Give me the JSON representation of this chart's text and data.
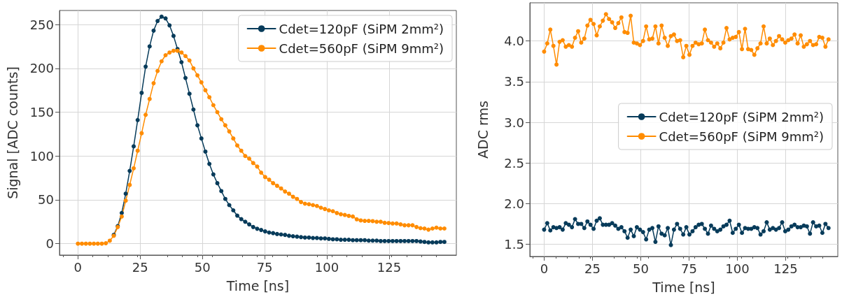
{
  "chart_data": [
    {
      "type": "line",
      "xlabel": "Time [ns]",
      "ylabel": "Signal [ADC counts]",
      "xlim": [
        -7.4,
        152
      ],
      "xticks": [
        0,
        25,
        50,
        75,
        100,
        125
      ],
      "ylim": [
        -13,
        266
      ],
      "yticks": [
        0,
        50,
        100,
        150,
        200,
        250
      ],
      "grid": true,
      "legend": "top right",
      "marker": "circle",
      "line_style": "solid",
      "x": [
        0,
        1.6,
        3.2,
        4.8,
        6.4,
        8,
        9.6,
        11.2,
        12.8,
        14.4,
        16,
        17.6,
        19.2,
        20.8,
        22.4,
        24,
        25.6,
        27.2,
        28.8,
        30.4,
        32,
        33.6,
        35.2,
        36.8,
        38.4,
        40,
        41.6,
        43.2,
        44.8,
        46.4,
        48,
        49.6,
        51.2,
        52.8,
        54.4,
        56,
        57.6,
        59.2,
        60.8,
        62.4,
        64,
        65.6,
        67.2,
        68.8,
        70.4,
        72,
        73.6,
        75.2,
        76.8,
        78.4,
        80,
        81.6,
        83.2,
        84.8,
        86.4,
        88,
        89.6,
        91.2,
        92.8,
        94.4,
        96,
        97.6,
        99.2,
        100.8,
        102.4,
        104,
        105.6,
        107.2,
        108.8,
        110.4,
        112,
        113.6,
        115.2,
        116.8,
        118.4,
        120,
        121.6,
        123.2,
        124.8,
        126.4,
        128,
        129.6,
        131.2,
        132.8,
        134.4,
        136,
        137.6,
        139.2,
        140.8,
        142.4,
        144,
        145.6,
        147.2
      ],
      "series": [
        {
          "name": "Cdet=120pF (SiPM 2mm²)",
          "color": "#073b5a",
          "values": [
            null,
            null,
            null,
            null,
            null,
            null,
            null,
            null,
            null,
            10,
            20,
            35,
            57,
            83,
            111,
            141,
            172,
            202,
            225,
            243,
            254,
            259,
            257,
            249,
            237,
            222,
            207,
            189,
            171,
            153,
            135,
            120,
            105,
            91,
            79,
            69,
            60,
            51,
            44,
            38,
            32,
            28,
            25,
            22,
            19,
            17,
            15.6,
            14,
            12.7,
            12,
            11,
            10.5,
            10,
            9,
            8.5,
            8,
            7.5,
            7,
            7,
            6.5,
            6.5,
            6,
            6,
            5.5,
            5,
            5,
            4.5,
            4.5,
            4.5,
            4,
            4,
            4,
            4,
            3.5,
            3.5,
            3.5,
            3,
            3,
            3,
            3,
            3,
            3,
            3,
            3,
            3,
            3,
            2.5,
            2,
            1.5,
            1.5,
            1.5,
            2,
            2
          ]
        },
        {
          "name": "Cdet=560pF (SiPM 9mm²)",
          "color": "#ff8c00",
          "values": [
            0,
            0,
            0,
            0,
            0,
            0,
            0,
            0.5,
            3.4,
            9,
            19,
            31,
            49,
            67,
            86,
            106,
            126,
            147,
            165,
            183,
            197,
            208,
            215,
            218,
            220,
            220,
            218,
            214,
            209,
            200,
            192,
            184,
            175,
            167,
            158,
            150,
            142,
            135,
            128,
            120,
            112,
            106,
            100,
            97,
            92,
            88,
            81,
            76,
            73,
            69,
            66,
            63,
            59.5,
            57,
            53.5,
            51,
            47.5,
            45.6,
            45,
            44,
            43,
            41,
            39.5,
            38,
            37,
            35,
            33.6,
            32.8,
            31.7,
            31,
            27.8,
            26.5,
            26,
            26,
            25.7,
            25,
            25,
            23.8,
            23.5,
            23,
            23,
            22,
            21,
            21,
            21,
            19,
            17.7,
            17.3,
            16,
            17.3,
            18.3,
            17.3,
            17.3
          ]
        }
      ]
    },
    {
      "type": "line",
      "xlabel": "Time [ns]",
      "ylabel": "ADC rms",
      "xlim": [
        -7.4,
        152
      ],
      "xticks": [
        0,
        25,
        50,
        75,
        100,
        125
      ],
      "ylim": [
        1.35,
        4.47
      ],
      "yticks": [
        1.5,
        {
          "value": 2,
          "label": "2.0"
        },
        2.5,
        {
          "value": 3,
          "label": "3.0"
        },
        3.5,
        {
          "value": 4,
          "label": "4.0"
        }
      ],
      "grid": true,
      "legend": "right",
      "marker": "circle",
      "line_style": "solid",
      "x": [
        0,
        1.6,
        3.2,
        4.8,
        6.4,
        8,
        9.6,
        11.2,
        12.8,
        14.4,
        16,
        17.6,
        19.2,
        20.8,
        22.4,
        24,
        25.6,
        27.2,
        28.8,
        30.4,
        32,
        33.6,
        35.2,
        36.8,
        38.4,
        40,
        41.6,
        43.2,
        44.8,
        46.4,
        48,
        49.6,
        51.2,
        52.8,
        54.4,
        56,
        57.6,
        59.2,
        60.8,
        62.4,
        64,
        65.6,
        67.2,
        68.8,
        70.4,
        72,
        73.6,
        75.2,
        76.8,
        78.4,
        80,
        81.6,
        83.2,
        84.8,
        86.4,
        88,
        89.6,
        91.2,
        92.8,
        94.4,
        96,
        97.6,
        99.2,
        100.8,
        102.4,
        104,
        105.6,
        107.2,
        108.8,
        110.4,
        112,
        113.6,
        115.2,
        116.8,
        118.4,
        120,
        121.6,
        123.2,
        124.8,
        126.4,
        128,
        129.6,
        131.2,
        132.8,
        134.4,
        136,
        137.6,
        139.2,
        140.8,
        142.4,
        144,
        145.6,
        147.2
      ],
      "series": [
        {
          "name": "Cdet=120pF (SiPM 2mm²)",
          "color": "#073b5a",
          "values": [
            1.68,
            1.76,
            1.67,
            1.71,
            1.7,
            1.71,
            1.68,
            1.76,
            1.74,
            1.71,
            1.81,
            1.75,
            1.75,
            1.7,
            1.78,
            1.74,
            1.69,
            1.79,
            1.82,
            1.74,
            1.74,
            1.74,
            1.76,
            1.73,
            1.69,
            1.71,
            1.66,
            1.58,
            1.68,
            1.6,
            1.71,
            1.68,
            1.65,
            1.56,
            1.68,
            1.7,
            1.53,
            1.72,
            1.63,
            1.61,
            1.7,
            1.49,
            1.68,
            1.75,
            1.69,
            1.62,
            1.71,
            1.62,
            1.66,
            1.71,
            1.74,
            1.75,
            1.69,
            1.63,
            1.73,
            1.69,
            1.66,
            1.68,
            1.72,
            1.74,
            1.79,
            1.64,
            1.69,
            1.74,
            1.64,
            1.7,
            1.69,
            1.69,
            1.71,
            1.7,
            1.62,
            1.66,
            1.77,
            1.68,
            1.7,
            1.68,
            1.7,
            1.77,
            1.66,
            1.68,
            1.72,
            1.74,
            1.71,
            1.71,
            1.73,
            1.72,
            1.63,
            1.77,
            1.72,
            1.73,
            1.64,
            1.75,
            1.7
          ]
        },
        {
          "name": "Cdet=560pF (SiPM 9mm²)",
          "color": "#ff8c00",
          "values": [
            3.87,
            3.97,
            4.14,
            3.94,
            3.71,
            3.99,
            4.01,
            3.93,
            3.95,
            3.93,
            4.04,
            4.12,
            3.98,
            4.03,
            4.19,
            4.26,
            4.21,
            4.07,
            4.18,
            4.25,
            4.33,
            4.27,
            4.23,
            4.16,
            4.22,
            4.29,
            4.11,
            4.1,
            4.31,
            3.98,
            3.97,
            3.95,
            4.0,
            4.18,
            4.02,
            4.03,
            4.18,
            3.97,
            4.19,
            4.04,
            3.94,
            4.06,
            4.08,
            4.0,
            4.01,
            3.8,
            3.94,
            3.83,
            3.94,
            3.98,
            3.96,
            3.97,
            4.14,
            4.01,
            3.98,
            3.93,
            3.97,
            3.91,
            3.98,
            4.16,
            4.02,
            4.04,
            4.05,
            4.11,
            3.9,
            4.15,
            3.9,
            3.89,
            3.83,
            3.91,
            3.97,
            4.18,
            3.97,
            4.03,
            3.95,
            4.0,
            4.06,
            4.02,
            3.98,
            4.01,
            4.03,
            4.08,
            3.97,
            4.07,
            3.93,
            3.96,
            4.0,
            3.95,
            3.96,
            4.05,
            4.04,
            3.93,
            4.02
          ]
        }
      ]
    }
  ]
}
